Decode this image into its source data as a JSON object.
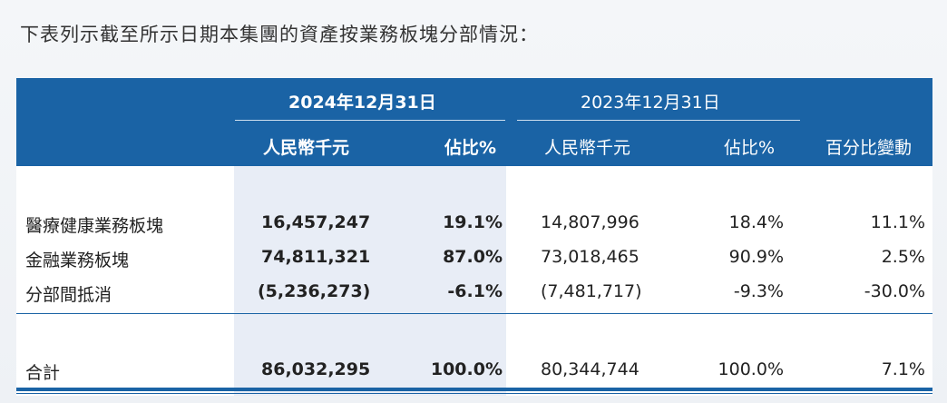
{
  "intro": "下表列示截至所示日期本集團的資產按業務板塊分部情況：",
  "header": {
    "date_2024": "2024年12月31日",
    "date_2023": "2023年12月31日",
    "rmb_2024": "人民幣千元",
    "pct_2024": "佔比%",
    "rmb_2023": "人民幣千元",
    "pct_2023": "佔比%",
    "change": "百分比變動"
  },
  "rows": [
    {
      "label": "醫療健康業務板塊",
      "v2024": "16,457,247",
      "p2024": "19.1%",
      "v2023": "14,807,996",
      "p2023": "18.4%",
      "chg": "11.1%"
    },
    {
      "label": "金融業務板塊",
      "v2024": "74,811,321",
      "p2024": "87.0%",
      "v2023": "73,018,465",
      "p2023": "90.9%",
      "chg": "2.5%"
    },
    {
      "label": "分部間抵消",
      "v2024": "(5,236,273)",
      "p2024": "-6.1%",
      "v2023": "(7,481,717)",
      "p2023": "-9.3%",
      "chg": "-30.0%"
    }
  ],
  "total": {
    "label": "合計",
    "v2024": "86,032,295",
    "p2024": "100.0%",
    "v2023": "80,344,744",
    "p2023": "100.0%",
    "chg": "7.1%"
  }
}
